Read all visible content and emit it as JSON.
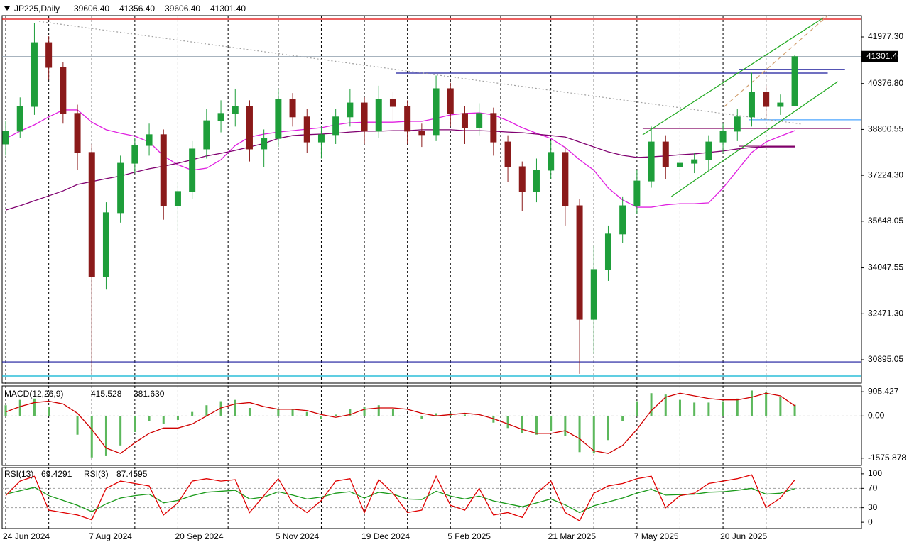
{
  "chart_data": [
    {
      "type": "candlestick",
      "title": "JP225,Daily",
      "header_values": [
        {
          "value": 39606.4,
          "label": "39606.40"
        },
        {
          "value": 41356.4,
          "label": "41356.40"
        },
        {
          "value": 39606.4,
          "label": "39606.40"
        },
        {
          "value": 41301.4,
          "label": "41301.40"
        }
      ],
      "categories": [
        "24 Jun 2024",
        null,
        null,
        null,
        null,
        null,
        "7 Aug 2024",
        null,
        null,
        null,
        null,
        null,
        "20 Sep 2024",
        null,
        null,
        null,
        null,
        null,
        null,
        "5 Nov 2024",
        null,
        null,
        null,
        null,
        null,
        "19 Dec 2024",
        null,
        null,
        null,
        null,
        null,
        "5 Feb 2025",
        null,
        null,
        null,
        null,
        null,
        null,
        "21 Mar 2025",
        null,
        null,
        null,
        null,
        null,
        "7 May 2025",
        null,
        null,
        null,
        null,
        null,
        "20 Jun 2025",
        null,
        null,
        null,
        null,
        null
      ],
      "open": [
        38300,
        38740,
        39590,
        41780,
        40930,
        39350,
        38010,
        33750,
        35940,
        37640,
        38250,
        38620,
        36180,
        36670,
        38130,
        39100,
        39350,
        39590,
        38130,
        38490,
        39830,
        39230,
        38370,
        38620,
        39230,
        39710,
        38740,
        39830,
        39590,
        38740,
        38620,
        40200,
        39350,
        38860,
        39350,
        38370,
        37520,
        36670,
        37400,
        38010,
        36180,
        32280,
        33990,
        35210,
        36180,
        37030,
        38370,
        37520,
        37640,
        37760,
        38370,
        38740,
        39230,
        40080,
        39590,
        39606.4
      ],
      "high": [
        39100,
        39900,
        42450,
        42000,
        41100,
        39650,
        38300,
        36300,
        37900,
        38500,
        39000,
        38800,
        37000,
        38400,
        39500,
        39800,
        40200,
        39800,
        38800,
        40200,
        40050,
        39500,
        38900,
        39500,
        40200,
        39900,
        40300,
        40100,
        39800,
        39000,
        40650,
        40400,
        39600,
        39700,
        39550,
        38600,
        37700,
        37800,
        38400,
        38200,
        36400,
        34800,
        35500,
        36500,
        37400,
        38900,
        38600,
        38100,
        38000,
        38600,
        39000,
        39500,
        40750,
        40300,
        40000,
        41356.4
      ],
      "low": [
        37900,
        38500,
        39300,
        40500,
        39000,
        37400,
        30410,
        33300,
        35600,
        37300,
        37900,
        35700,
        35300,
        36400,
        37800,
        38700,
        38900,
        37700,
        37500,
        38200,
        38900,
        38000,
        37800,
        38300,
        38900,
        38300,
        38500,
        39100,
        38300,
        38200,
        38400,
        38900,
        38300,
        38600,
        37900,
        37000,
        36000,
        36300,
        37100,
        35500,
        30410,
        31100,
        33600,
        34900,
        35900,
        36800,
        37100,
        37000,
        37300,
        37400,
        38000,
        38400,
        38900,
        39200,
        39300,
        39606.4
      ],
      "close": [
        38740,
        39590,
        41780,
        40930,
        39350,
        38010,
        33750,
        35940,
        37640,
        38250,
        38620,
        36180,
        36670,
        38130,
        39100,
        39350,
        39590,
        38130,
        38490,
        39830,
        39230,
        38370,
        38620,
        39230,
        39710,
        38740,
        39830,
        39590,
        38740,
        38620,
        40200,
        39350,
        38860,
        39350,
        38370,
        37520,
        36670,
        37400,
        38010,
        36180,
        32280,
        33990,
        35210,
        36180,
        37030,
        38370,
        37520,
        37640,
        37760,
        38370,
        38740,
        39230,
        40080,
        39590,
        39710,
        41301.4
      ],
      "up_color": "#1e9e3a",
      "down_color": "#8b1a1a",
      "moving_averages": [
        {
          "color": "#e020e0",
          "values": [
            38490,
            38740,
            38960,
            39230,
            39470,
            39470,
            39050,
            38790,
            38670,
            38570,
            38370,
            37890,
            37590,
            37400,
            37470,
            37760,
            38250,
            38540,
            38640,
            38710,
            38760,
            38810,
            38860,
            38960,
            39030,
            39050,
            39050,
            39050,
            39080,
            39080,
            39180,
            39300,
            39350,
            39370,
            39300,
            39100,
            38860,
            38670,
            38490,
            38180,
            37760,
            37400,
            36790,
            36380,
            36130,
            36130,
            36210,
            36250,
            36250,
            36280,
            36790,
            37400,
            38010,
            38370,
            38570,
            38760
          ]
        },
        {
          "color": "#800070",
          "values": [
            36030,
            36180,
            36350,
            36520,
            36690,
            36910,
            37010,
            37110,
            37200,
            37330,
            37450,
            37540,
            37640,
            37760,
            37890,
            37980,
            38080,
            38200,
            38320,
            38490,
            38590,
            38620,
            38640,
            38670,
            38710,
            38740,
            38740,
            38760,
            38760,
            38790,
            38790,
            38790,
            38760,
            38760,
            38740,
            38710,
            38690,
            38640,
            38590,
            38540,
            38370,
            38200,
            38030,
            37910,
            37840,
            37860,
            37890,
            37930,
            37960,
            38010,
            38060,
            38130,
            38180,
            38200,
            38200,
            38200
          ]
        }
      ],
      "drawings": [
        {
          "x": [
            -0.25,
            59.65
          ],
          "y": [
            42586,
            42586
          ],
          "color": "#e00000",
          "style": "solid"
        },
        {
          "x": [
            27.2,
            57.3
          ],
          "y": [
            40735,
            40735
          ],
          "color": "#1a1a9c",
          "style": "solid"
        },
        {
          "x": [
            51.1,
            58.5
          ],
          "y": [
            40860,
            40860
          ],
          "color": "#1a1a9c",
          "style": "solid"
        },
        {
          "x": [
            44.4,
            58.9
          ],
          "y": [
            38835,
            38835
          ],
          "color": "#800060",
          "style": "solid"
        },
        {
          "x": [
            51.1,
            55
          ],
          "y": [
            38225,
            38225
          ],
          "color": "#800060",
          "style": "solid"
        },
        {
          "x": [
            51.8,
            59.65
          ],
          "y": [
            39130,
            39130
          ],
          "color": "#4da6ff",
          "style": "solid"
        },
        {
          "x": [
            -0.25,
            59.65
          ],
          "y": [
            30820,
            30820
          ],
          "color": "#1a1a9c",
          "style": "solid"
        },
        {
          "x": [
            -0.25,
            59.65
          ],
          "y": [
            30335,
            30335
          ],
          "color": "#00b0d0",
          "style": "solid"
        },
        {
          "x": [
            2.33,
            55.5
          ],
          "y": [
            42510,
            38982
          ],
          "color": "#a0a0a0",
          "style": "dotted"
        },
        {
          "x": [
            44.4,
            57.0
          ],
          "y": [
            38616,
            42635
          ],
          "color": "#22aa22",
          "style": "solid"
        },
        {
          "x": [
            46.4,
            58.0
          ],
          "y": [
            36497,
            40443
          ],
          "color": "#22aa22",
          "style": "solid"
        },
        {
          "x": [
            50.1,
            57.3
          ],
          "y": [
            39590,
            42708
          ],
          "color": "#d2a070",
          "style": "dashed"
        }
      ],
      "last_price": {
        "value": 41301.4,
        "label": "41301.40"
      },
      "xlim": [
        -0.25,
        59.65
      ],
      "ylim": [
        30091,
        42708
      ],
      "yticks": [
        {
          "value": 41977.3,
          "label": "41977.30"
        },
        {
          "value": 40376.8,
          "label": "40376.80"
        },
        38800.55,
        {
          "value": 37224.3,
          "label": "37224.30"
        },
        35648.05,
        34047.55,
        {
          "value": 32471.3,
          "label": "32471.30"
        },
        30895.05
      ]
    },
    {
      "type": "macd",
      "title": "MACD(12,26,9)",
      "header_values": [
        415.528,
        {
          "value": 381.63,
          "label": "381.630"
        }
      ],
      "histogram": {
        "color": "#5cb85c",
        "values": [
          400,
          600,
          650,
          350,
          0,
          -700,
          -1550,
          -1500,
          -1100,
          -600,
          -200,
          -300,
          -150,
          150,
          400,
          550,
          600,
          300,
          0,
          250,
          250,
          150,
          -100,
          50,
          250,
          350,
          400,
          250,
          0,
          -100,
          100,
          100,
          50,
          0,
          -250,
          -450,
          -650,
          -700,
          -550,
          -750,
          -1350,
          -1400,
          -900,
          -200,
          550,
          850,
          800,
          600,
          500,
          500,
          550,
          650,
          950,
          900,
          700,
          415.528
        ]
      },
      "signal": {
        "color": "#d00000",
        "values": [
          150,
          350,
          500,
          550,
          450,
          100,
          -500,
          -1200,
          -1400,
          -1000,
          -650,
          -450,
          -450,
          -300,
          0,
          300,
          450,
          500,
          350,
          250,
          250,
          200,
          50,
          -50,
          50,
          250,
          300,
          300,
          250,
          100,
          0,
          50,
          100,
          50,
          -100,
          -300,
          -500,
          -650,
          -650,
          -550,
          -850,
          -1300,
          -1400,
          -1100,
          -500,
          200,
          700,
          850,
          750,
          650,
          600,
          600,
          700,
          850,
          750,
          381.63
        ]
      },
      "levels": [
        0
      ],
      "ylim": [
        -1846,
        1121
      ],
      "yticks": [
        905.427,
        {
          "value": 0,
          "label": "0.00"
        },
        -1575.878
      ]
    },
    {
      "type": "line",
      "series": [
        {
          "name": "RSI(13)",
          "color": "#1a9a1a",
          "values": [
            58,
            65,
            72,
            55,
            45,
            35,
            22,
            38,
            50,
            55,
            58,
            40,
            45,
            55,
            62,
            64,
            66,
            48,
            52,
            63,
            56,
            48,
            52,
            60,
            63,
            50,
            62,
            58,
            48,
            47,
            64,
            54,
            48,
            54,
            44,
            38,
            32,
            40,
            48,
            36,
            20,
            34,
            42,
            50,
            60,
            68,
            56,
            57,
            58,
            62,
            63,
            66,
            70,
            58,
            60,
            69.4291
          ]
        },
        {
          "name": "RSI(3)",
          "color": "#e00000",
          "values": [
            55,
            85,
            95,
            25,
            20,
            15,
            5,
            70,
            85,
            80,
            75,
            15,
            40,
            85,
            90,
            85,
            88,
            20,
            55,
            90,
            40,
            20,
            45,
            85,
            90,
            20,
            88,
            60,
            20,
            25,
            95,
            35,
            25,
            70,
            15,
            20,
            10,
            60,
            85,
            20,
            3,
            60,
            75,
            80,
            90,
            95,
            30,
            55,
            60,
            80,
            85,
            90,
            98,
            30,
            50,
            87.4595
          ]
        }
      ],
      "levels": [
        70,
        30
      ],
      "ylim": [
        -13,
        113
      ],
      "yticks": [
        100,
        70,
        30,
        0
      ]
    }
  ]
}
